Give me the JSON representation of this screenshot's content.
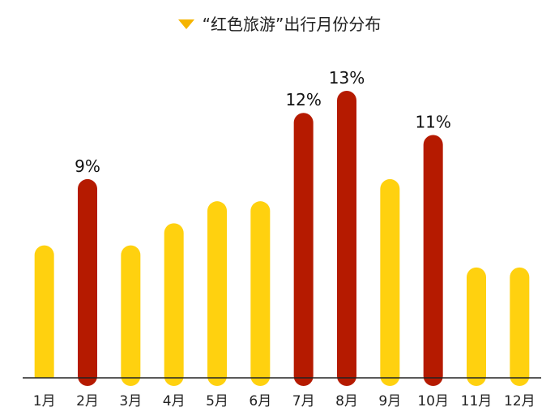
{
  "chart_data": {
    "type": "bar",
    "legend": {
      "label": "“红色旅游”出行月份分布",
      "position": "top-center"
    },
    "categories": [
      "1月",
      "2月",
      "3月",
      "4月",
      "5月",
      "6月",
      "7月",
      "8月",
      "9月",
      "10月",
      "11月",
      "12月"
    ],
    "values": [
      6,
      9,
      6,
      7,
      8,
      8,
      12,
      13,
      9,
      11,
      5,
      5
    ],
    "data_labels": [
      "",
      "9%",
      "",
      "",
      "",
      "",
      "12%",
      "13%",
      "",
      "11%",
      "",
      ""
    ],
    "highlight": [
      false,
      true,
      false,
      false,
      false,
      false,
      true,
      true,
      false,
      true,
      false,
      false
    ],
    "colors": {
      "normal": "#FFD10F",
      "highlight": "#B51A00",
      "axis": "#222222"
    },
    "ylim": [
      0,
      13
    ],
    "grid": false
  }
}
